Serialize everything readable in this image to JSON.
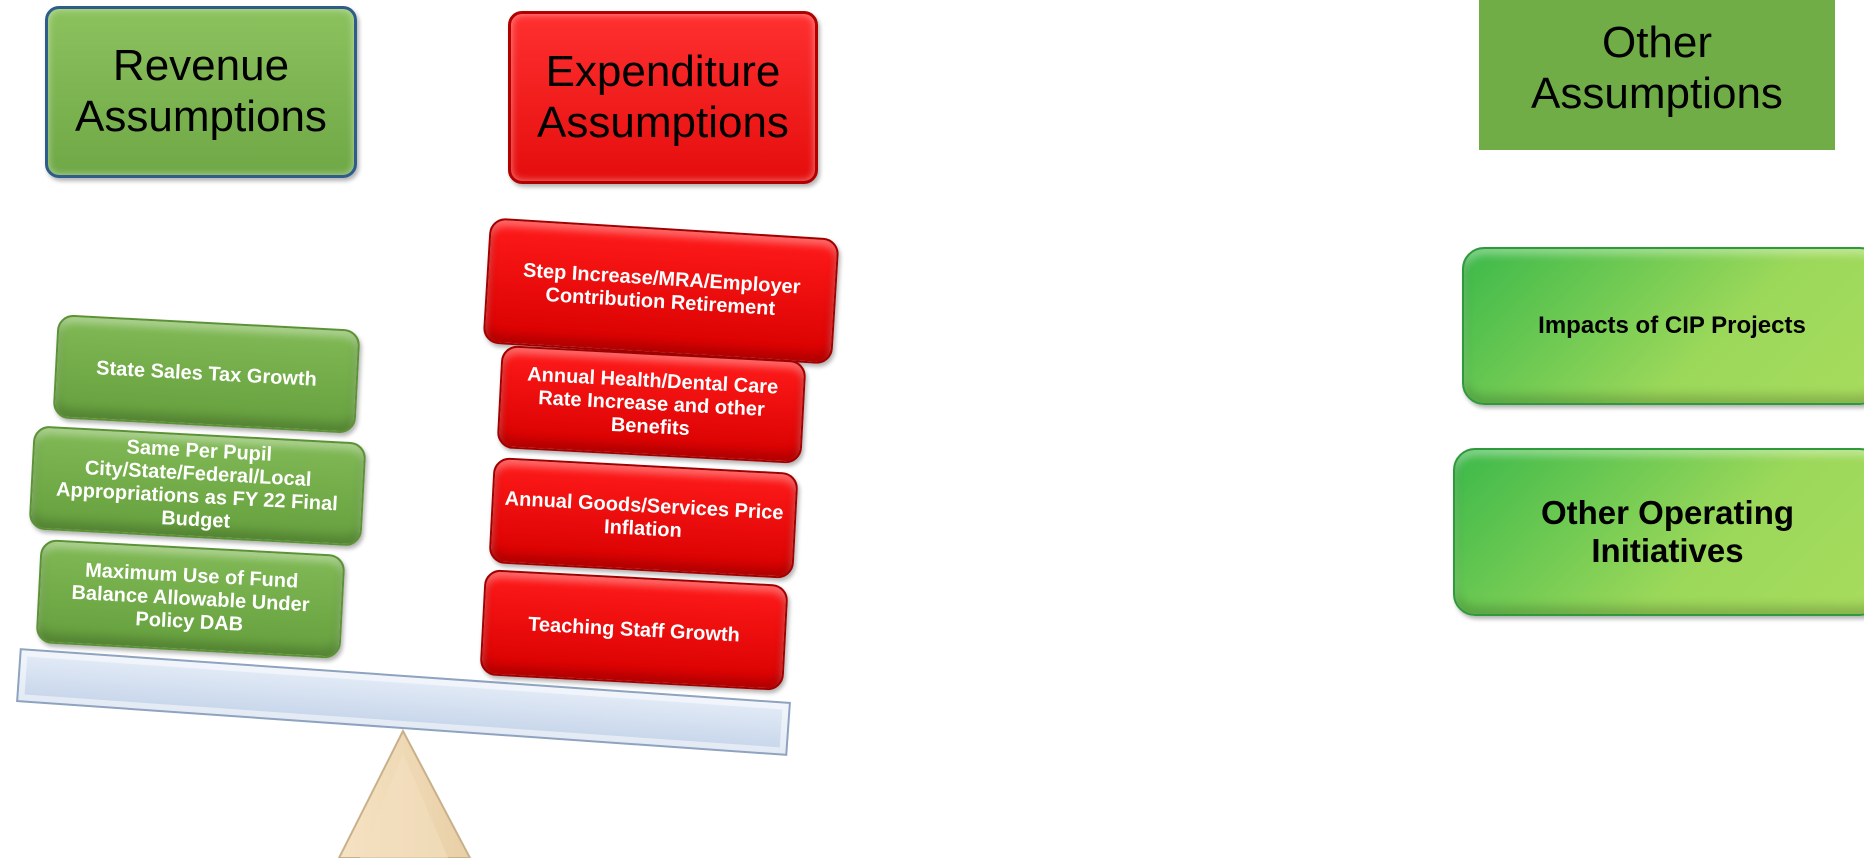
{
  "revenue": {
    "title": "Revenue Assumptions",
    "items": [
      "State Sales Tax Growth",
      "Same Per Pupil City/State/Federal/Local Appropriations as FY 22 Final Budget",
      "Maximum Use of Fund Balance Allowable Under Policy DAB"
    ]
  },
  "expenditure": {
    "title": "Expenditure Assumptions",
    "items": [
      "Step Increase/MRA/Employer Contribution Retirement",
      "Annual Health/Dental Care Rate Increase and other Benefits",
      "Annual Goods/Services Price Inflation",
      "Teaching Staff Growth"
    ]
  },
  "other": {
    "title": "Other Assumptions",
    "items": [
      "Impacts of CIP Projects",
      "Other Operating Initiatives"
    ]
  }
}
